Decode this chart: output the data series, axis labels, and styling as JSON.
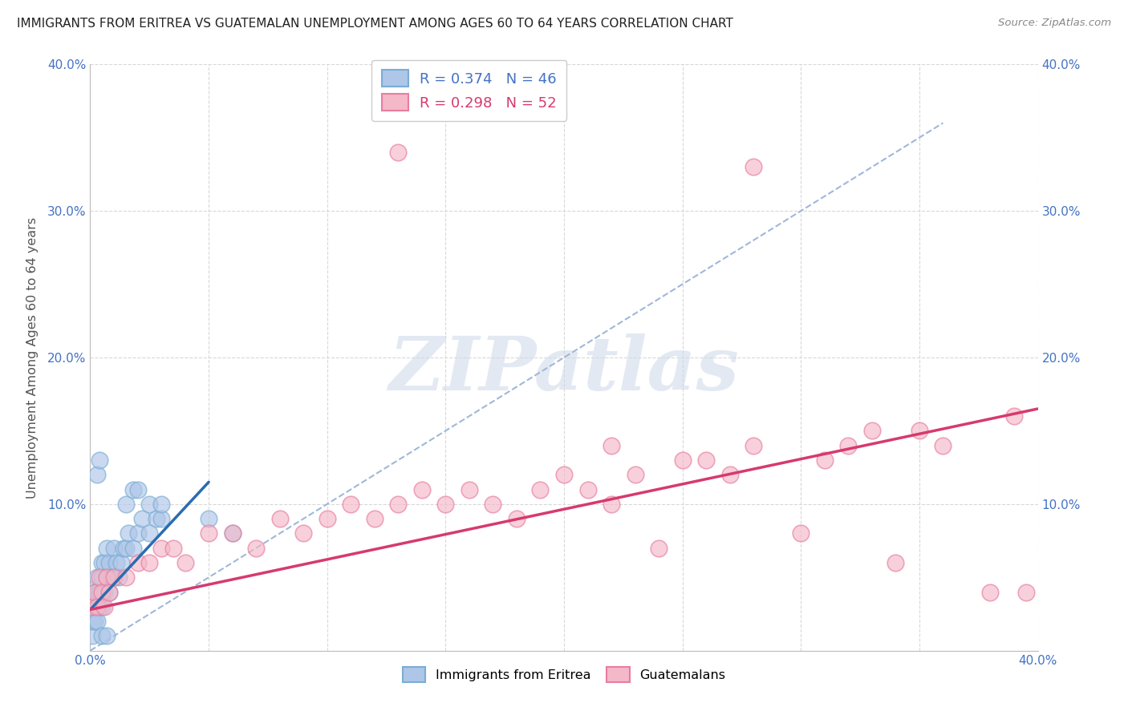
{
  "title": "IMMIGRANTS FROM ERITREA VS GUATEMALAN UNEMPLOYMENT AMONG AGES 60 TO 64 YEARS CORRELATION CHART",
  "source": "Source: ZipAtlas.com",
  "ylabel": "Unemployment Among Ages 60 to 64 years",
  "xlim": [
    0.0,
    0.4
  ],
  "ylim": [
    0.0,
    0.4
  ],
  "blue_R": 0.374,
  "blue_N": 46,
  "pink_R": 0.298,
  "pink_N": 52,
  "blue_color": "#aec6e8",
  "pink_color": "#f4b8c8",
  "blue_edge_color": "#7aadd4",
  "pink_edge_color": "#e87da0",
  "blue_line_color": "#2b6cb0",
  "pink_line_color": "#d63a6e",
  "gray_dash_color": "#a0b8d8",
  "watermark": "ZIPatlas",
  "legend_label_blue": "Immigrants from Eritrea",
  "legend_label_pink": "Guatemalans",
  "blue_x": [
    0.001,
    0.001,
    0.001,
    0.002,
    0.002,
    0.002,
    0.003,
    0.003,
    0.003,
    0.004,
    0.004,
    0.005,
    0.005,
    0.005,
    0.006,
    0.006,
    0.007,
    0.007,
    0.008,
    0.008,
    0.009,
    0.01,
    0.01,
    0.011,
    0.012,
    0.013,
    0.014,
    0.015,
    0.016,
    0.018,
    0.02,
    0.022,
    0.025,
    0.028,
    0.03,
    0.015,
    0.018,
    0.02,
    0.025,
    0.03,
    0.003,
    0.004,
    0.05,
    0.06,
    0.005,
    0.007
  ],
  "blue_y": [
    0.01,
    0.02,
    0.03,
    0.02,
    0.03,
    0.04,
    0.02,
    0.04,
    0.05,
    0.03,
    0.04,
    0.03,
    0.05,
    0.06,
    0.04,
    0.06,
    0.05,
    0.07,
    0.04,
    0.06,
    0.05,
    0.05,
    0.07,
    0.06,
    0.05,
    0.06,
    0.07,
    0.07,
    0.08,
    0.07,
    0.08,
    0.09,
    0.08,
    0.09,
    0.09,
    0.1,
    0.11,
    0.11,
    0.1,
    0.1,
    0.12,
    0.13,
    0.09,
    0.08,
    0.01,
    0.01
  ],
  "pink_x": [
    0.001,
    0.002,
    0.003,
    0.004,
    0.005,
    0.006,
    0.007,
    0.008,
    0.01,
    0.015,
    0.02,
    0.025,
    0.03,
    0.035,
    0.04,
    0.05,
    0.06,
    0.07,
    0.08,
    0.09,
    0.1,
    0.11,
    0.12,
    0.13,
    0.14,
    0.15,
    0.16,
    0.17,
    0.18,
    0.19,
    0.2,
    0.21,
    0.22,
    0.23,
    0.24,
    0.25,
    0.26,
    0.27,
    0.28,
    0.3,
    0.31,
    0.32,
    0.33,
    0.34,
    0.35,
    0.36,
    0.38,
    0.39,
    0.13,
    0.22,
    0.28,
    0.395
  ],
  "pink_y": [
    0.03,
    0.04,
    0.03,
    0.05,
    0.04,
    0.03,
    0.05,
    0.04,
    0.05,
    0.05,
    0.06,
    0.06,
    0.07,
    0.07,
    0.06,
    0.08,
    0.08,
    0.07,
    0.09,
    0.08,
    0.09,
    0.1,
    0.09,
    0.1,
    0.11,
    0.1,
    0.11,
    0.1,
    0.09,
    0.11,
    0.12,
    0.11,
    0.1,
    0.12,
    0.07,
    0.13,
    0.13,
    0.12,
    0.14,
    0.08,
    0.13,
    0.14,
    0.15,
    0.06,
    0.15,
    0.14,
    0.04,
    0.16,
    0.34,
    0.14,
    0.33,
    0.04
  ],
  "blue_trend_x": [
    0.0,
    0.05
  ],
  "blue_trend_y_start": 0.028,
  "blue_trend_y_end": 0.115,
  "pink_trend_x": [
    0.0,
    0.4
  ],
  "pink_trend_y_start": 0.028,
  "pink_trend_y_end": 0.165,
  "dash_line_x": [
    0.0,
    0.36
  ],
  "dash_line_y": [
    0.0,
    0.36
  ]
}
